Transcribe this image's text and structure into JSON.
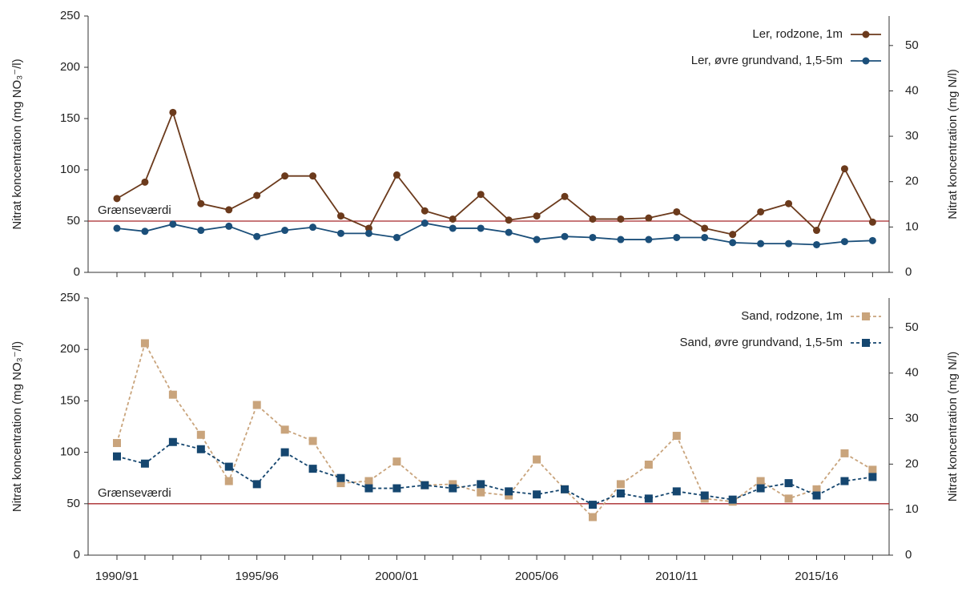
{
  "chart_data": [
    {
      "type": "line",
      "ylabel": "Nitrat koncentration (mg NO₃⁻/l)",
      "y2label": "Nitrat koncentration (mg N/l)",
      "categories": [
        null,
        null,
        null,
        null,
        null,
        null,
        null,
        null,
        null,
        null,
        null,
        null,
        null,
        null,
        null,
        null,
        null,
        null,
        null,
        null,
        null,
        null,
        null,
        null,
        null,
        null,
        null,
        null
      ],
      "ylim": [
        0,
        250
      ],
      "yticks": [
        0,
        50,
        100,
        150,
        200,
        250
      ],
      "y2lim": [
        0,
        56.5
      ],
      "y2ticks": [
        0,
        10,
        20,
        30,
        40,
        50
      ],
      "threshold": {
        "value": 50,
        "label": "Grænseværdi",
        "color": "#a8282b"
      },
      "legend": "upper right",
      "series": [
        {
          "name": "Ler, rodzone, 1m",
          "color": "#6b3a1c",
          "marker": "circle",
          "dashed": false,
          "values": [
            72,
            88,
            156,
            67,
            61,
            75,
            94,
            94,
            55,
            43,
            95,
            60,
            52,
            76,
            51,
            55,
            74,
            52,
            52,
            53,
            59,
            43,
            37,
            59,
            67,
            41,
            101,
            49
          ]
        },
        {
          "name": "Ler, øvre grundvand, 1,5-5m",
          "color": "#1b4f7a",
          "marker": "circle",
          "dashed": false,
          "values": [
            43,
            40,
            47,
            41,
            45,
            35,
            41,
            44,
            38,
            38,
            34,
            48,
            43,
            43,
            39,
            32,
            35,
            34,
            32,
            32,
            34,
            34,
            29,
            28,
            28,
            27,
            30,
            31
          ]
        }
      ]
    },
    {
      "type": "line",
      "ylabel": "Nitrat koncentration (mg NO₃⁻/l)",
      "y2label": "Nitrat koncentration (mg N/l)",
      "categories": [
        "1990/91",
        null,
        null,
        null,
        null,
        "1995/96",
        null,
        null,
        null,
        null,
        "2000/01",
        null,
        null,
        null,
        null,
        "2005/06",
        null,
        null,
        null,
        null,
        "2010/11",
        null,
        null,
        null,
        null,
        "2015/16",
        null,
        null
      ],
      "ylim": [
        0,
        250
      ],
      "yticks": [
        0,
        50,
        100,
        150,
        200,
        250
      ],
      "y2lim": [
        0,
        56.5
      ],
      "y2ticks": [
        0,
        10,
        20,
        30,
        40,
        50
      ],
      "threshold": {
        "value": 50,
        "label": "Grænseværdi",
        "color": "#a8282b"
      },
      "legend": "upper right",
      "series": [
        {
          "name": "Sand, rodzone, 1m",
          "color": "#c9a47c",
          "marker": "square",
          "dashed": true,
          "values": [
            109,
            206,
            156,
            117,
            72,
            146,
            122,
            111,
            70,
            72,
            91,
            68,
            69,
            61,
            58,
            93,
            64,
            37,
            69,
            88,
            116,
            55,
            52,
            72,
            55,
            64,
            99,
            83
          ]
        },
        {
          "name": "Sand, øvre grundvand, 1,5-5m",
          "color": "#15466f",
          "marker": "square",
          "dashed": true,
          "values": [
            96,
            89,
            110,
            103,
            86,
            69,
            100,
            84,
            75,
            65,
            65,
            68,
            65,
            69,
            62,
            59,
            64,
            49,
            60,
            55,
            62,
            58,
            54,
            65,
            70,
            58,
            72,
            76
          ]
        }
      ]
    }
  ]
}
